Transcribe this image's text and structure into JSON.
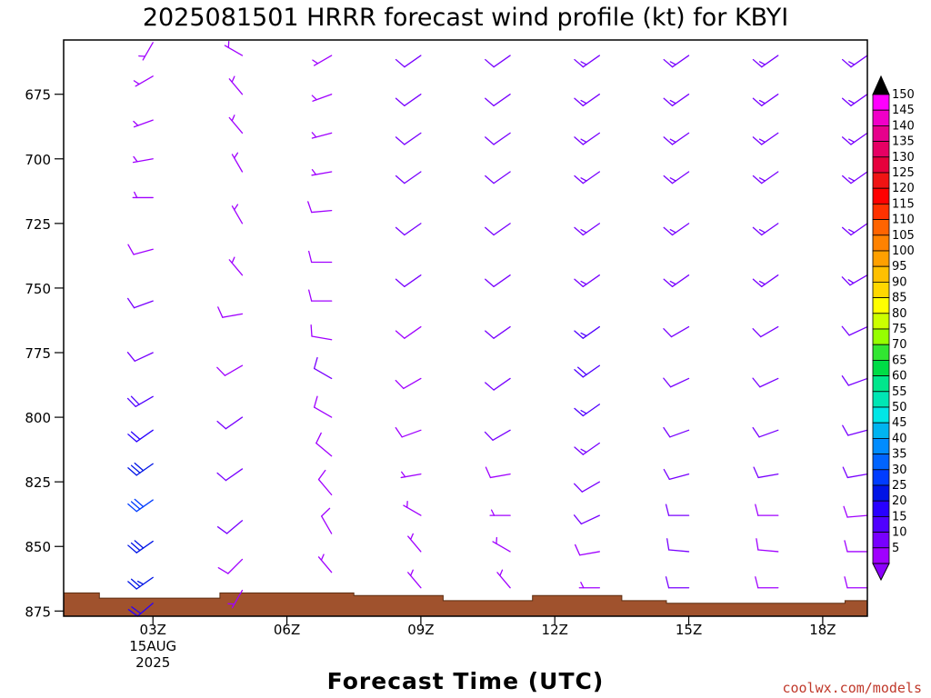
{
  "chart_data": {
    "type": "wind-barb-profile",
    "title": "2025081501 HRRR forecast wind profile (kt) for KBYI",
    "xlabel": "Forecast Time (UTC)",
    "ylabel": "",
    "credit": "coolwx.com/models",
    "x_hours_range": [
      1,
      19
    ],
    "y_range_hpa": [
      654,
      877
    ],
    "y_ticks": [
      675,
      700,
      725,
      750,
      775,
      800,
      825,
      850,
      875
    ],
    "x_ticks": [
      {
        "hour": 3,
        "lines": [
          "03Z",
          "15AUG",
          "2025"
        ]
      },
      {
        "hour": 6,
        "lines": [
          "06Z"
        ]
      },
      {
        "hour": 9,
        "lines": [
          "09Z"
        ]
      },
      {
        "hour": 12,
        "lines": [
          "12Z"
        ]
      },
      {
        "hour": 15,
        "lines": [
          "15Z"
        ]
      },
      {
        "hour": 18,
        "lines": [
          "18Z"
        ]
      }
    ],
    "columns": [
      {
        "hour": 3,
        "ground_hpa": 872,
        "profile": [
          [
            655,
            4,
            210
          ],
          [
            668,
            5,
            240
          ],
          [
            685,
            5,
            250
          ],
          [
            700,
            5,
            260
          ],
          [
            715,
            6,
            270
          ],
          [
            735,
            8,
            255
          ],
          [
            755,
            10,
            250
          ],
          [
            775,
            12,
            245
          ],
          [
            792,
            18,
            240
          ],
          [
            805,
            22,
            235
          ],
          [
            818,
            28,
            235
          ],
          [
            832,
            30,
            235
          ],
          [
            848,
            28,
            235
          ],
          [
            862,
            25,
            235
          ],
          [
            872,
            20,
            230
          ]
        ]
      },
      {
        "hour": 5,
        "ground_hpa": 867,
        "profile": [
          [
            660,
            5,
            300
          ],
          [
            675,
            5,
            320
          ],
          [
            690,
            5,
            320
          ],
          [
            705,
            6,
            330
          ],
          [
            725,
            6,
            330
          ],
          [
            745,
            6,
            320
          ],
          [
            760,
            8,
            260
          ],
          [
            780,
            8,
            240
          ],
          [
            800,
            10,
            235
          ],
          [
            820,
            10,
            235
          ],
          [
            840,
            10,
            230
          ],
          [
            855,
            8,
            225
          ],
          [
            867,
            6,
            210
          ]
        ]
      },
      {
        "hour": 7,
        "ground_hpa": 867,
        "profile": [
          [
            660,
            6,
            240
          ],
          [
            675,
            6,
            250
          ],
          [
            690,
            6,
            255
          ],
          [
            705,
            7,
            260
          ],
          [
            720,
            8,
            265
          ],
          [
            740,
            8,
            270
          ],
          [
            755,
            8,
            270
          ],
          [
            770,
            8,
            280
          ],
          [
            785,
            10,
            300
          ],
          [
            800,
            9,
            300
          ],
          [
            815,
            8,
            310
          ],
          [
            830,
            8,
            320
          ],
          [
            845,
            8,
            330
          ],
          [
            860,
            7,
            320
          ]
        ]
      },
      {
        "hour": 9,
        "ground_hpa": 869,
        "profile": [
          [
            660,
            10,
            235
          ],
          [
            675,
            10,
            235
          ],
          [
            690,
            10,
            235
          ],
          [
            705,
            10,
            235
          ],
          [
            725,
            10,
            235
          ],
          [
            745,
            10,
            235
          ],
          [
            765,
            9,
            235
          ],
          [
            785,
            8,
            240
          ],
          [
            805,
            8,
            250
          ],
          [
            822,
            7,
            260
          ],
          [
            838,
            6,
            300
          ],
          [
            852,
            6,
            320
          ],
          [
            866,
            6,
            320
          ]
        ]
      },
      {
        "hour": 11,
        "ground_hpa": 871,
        "profile": [
          [
            660,
            12,
            235
          ],
          [
            675,
            12,
            235
          ],
          [
            690,
            12,
            235
          ],
          [
            705,
            12,
            235
          ],
          [
            725,
            12,
            235
          ],
          [
            745,
            12,
            235
          ],
          [
            765,
            11,
            235
          ],
          [
            785,
            10,
            235
          ],
          [
            805,
            10,
            240
          ],
          [
            822,
            8,
            260
          ],
          [
            838,
            6,
            270
          ],
          [
            852,
            5,
            300
          ],
          [
            866,
            5,
            320
          ]
        ]
      },
      {
        "hour": 13,
        "ground_hpa": 870,
        "profile": [
          [
            660,
            14,
            235
          ],
          [
            675,
            14,
            235
          ],
          [
            690,
            14,
            235
          ],
          [
            705,
            14,
            235
          ],
          [
            725,
            14,
            235
          ],
          [
            745,
            14,
            235
          ],
          [
            765,
            15,
            235
          ],
          [
            780,
            18,
            235
          ],
          [
            795,
            15,
            235
          ],
          [
            810,
            14,
            235
          ],
          [
            825,
            12,
            240
          ],
          [
            838,
            10,
            245
          ],
          [
            852,
            8,
            260
          ],
          [
            866,
            6,
            270
          ]
        ]
      },
      {
        "hour": 15,
        "ground_hpa": 872,
        "profile": [
          [
            660,
            14,
            235
          ],
          [
            675,
            14,
            235
          ],
          [
            690,
            14,
            235
          ],
          [
            705,
            14,
            235
          ],
          [
            725,
            14,
            235
          ],
          [
            745,
            14,
            235
          ],
          [
            765,
            12,
            240
          ],
          [
            785,
            12,
            245
          ],
          [
            805,
            12,
            250
          ],
          [
            822,
            12,
            255
          ],
          [
            838,
            12,
            270
          ],
          [
            852,
            12,
            275
          ],
          [
            866,
            12,
            270
          ]
        ]
      },
      {
        "hour": 17,
        "ground_hpa": 872,
        "profile": [
          [
            660,
            14,
            235
          ],
          [
            675,
            14,
            235
          ],
          [
            690,
            14,
            235
          ],
          [
            705,
            14,
            235
          ],
          [
            725,
            14,
            235
          ],
          [
            745,
            14,
            235
          ],
          [
            765,
            12,
            240
          ],
          [
            785,
            12,
            245
          ],
          [
            805,
            12,
            250
          ],
          [
            822,
            10,
            260
          ],
          [
            838,
            8,
            270
          ],
          [
            852,
            8,
            275
          ],
          [
            866,
            8,
            270
          ]
        ]
      },
      {
        "hour": 19,
        "ground_hpa": 872,
        "profile": [
          [
            660,
            14,
            235
          ],
          [
            675,
            14,
            235
          ],
          [
            690,
            14,
            235
          ],
          [
            705,
            14,
            235
          ],
          [
            725,
            14,
            235
          ],
          [
            745,
            14,
            240
          ],
          [
            765,
            12,
            245
          ],
          [
            785,
            12,
            250
          ],
          [
            805,
            10,
            255
          ],
          [
            822,
            10,
            260
          ],
          [
            838,
            8,
            265
          ],
          [
            852,
            8,
            270
          ],
          [
            866,
            8,
            270
          ]
        ]
      }
    ],
    "terrain": [
      [
        1.0,
        868
      ],
      [
        1.8,
        868
      ],
      [
        1.8,
        870
      ],
      [
        4.5,
        870
      ],
      [
        4.5,
        868
      ],
      [
        7.5,
        868
      ],
      [
        7.5,
        869
      ],
      [
        9.5,
        869
      ],
      [
        9.5,
        871
      ],
      [
        11.5,
        871
      ],
      [
        11.5,
        869
      ],
      [
        13.5,
        869
      ],
      [
        13.5,
        871
      ],
      [
        14.5,
        871
      ],
      [
        14.5,
        872
      ],
      [
        18.5,
        872
      ],
      [
        18.5,
        871
      ],
      [
        19.0,
        871
      ]
    ],
    "colorbar": {
      "labels": [
        "150",
        "145",
        "140",
        "135",
        "130",
        "125",
        "120",
        "115",
        "110",
        "105",
        "100",
        "95",
        "90",
        "85",
        "80",
        "75",
        "70",
        "65",
        "60",
        "55",
        "50",
        "45",
        "40",
        "35",
        "30",
        "25",
        "20",
        "15",
        "10",
        "5"
      ],
      "colors": [
        "#ff00ff",
        "#f000c8",
        "#e6008c",
        "#e60064",
        "#e6003c",
        "#f01414",
        "#ff0000",
        "#ff3200",
        "#ff6400",
        "#ff8200",
        "#ffa000",
        "#ffc000",
        "#ffd800",
        "#ffff00",
        "#ccff00",
        "#96ff00",
        "#32e632",
        "#00dc46",
        "#00e68c",
        "#00e6b4",
        "#00e6e6",
        "#00b4f0",
        "#008cff",
        "#0064ff",
        "#003cff",
        "#0014e6",
        "#2800ff",
        "#5000ff",
        "#7800ff",
        "#a000ff"
      ],
      "top_arrow_color": "#000000",
      "bottom_arrow_color": "#8c00ff"
    },
    "colors": {
      "terrain": "#a0522d",
      "terrain_edge": "#5c2e12",
      "frame": "#000000",
      "background": "#ffffff"
    }
  }
}
